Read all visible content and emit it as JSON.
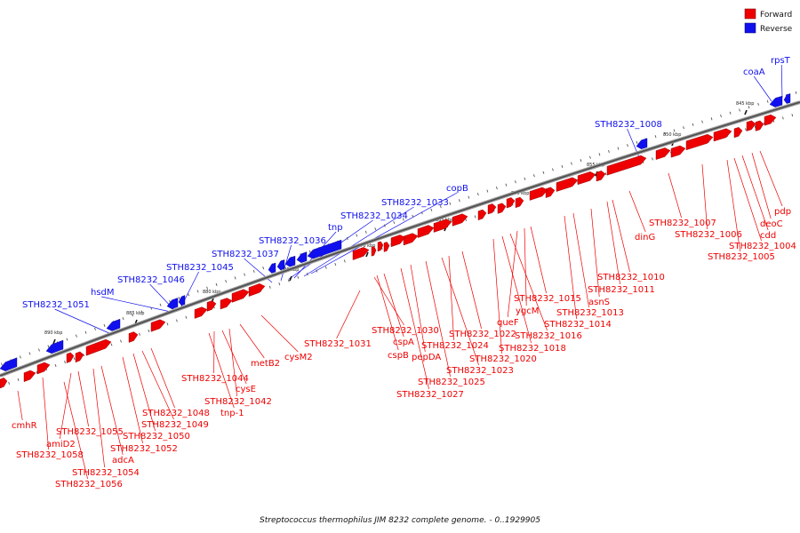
{
  "legend": {
    "forward_label": "Forward",
    "reverse_label": "Reverse",
    "forward_color": "#ee0000",
    "reverse_color": "#1010ee"
  },
  "caption": "Streptococcus thermophilus JIM 8232 complete genome. - 0..1929905",
  "tick_labels": [
    "845 kbp",
    "850 kbp",
    "855 kbp",
    "860 kbp",
    "865 kbp",
    "870 kbp",
    "875 kbp",
    "880 kbp",
    "885 kbp",
    "890 kbp"
  ],
  "top_labels": [
    "rpsT",
    "coaA",
    "STH8232_1008",
    "copB",
    "STH8232_1033",
    "tnp",
    "STH8232_1034",
    "STH8232_1036",
    "STH8232_1037",
    "STH8232_1045",
    "STH8232_1046",
    "hsdM",
    "STH8232_1051"
  ],
  "bottom_labels": [
    "pdp",
    "deoC",
    "cdd",
    "STH8232_1004",
    "STH8232_1005",
    "STH8232_1007",
    "STH8232_1006",
    "dinG",
    "STH8232_1010",
    "STH8232_1011",
    "asnS",
    "STH8232_1013",
    "STH8232_1014",
    "STH8232_1015",
    "ygcM",
    "queF",
    "STH8232_1016",
    "STH8232_1018",
    "STH8232_1020",
    "STH8232_1022",
    "STH8232_1024",
    "STH8232_1023",
    "STH8232_1025",
    "pepDA",
    "STH8232_1027",
    "cspA",
    "cspB",
    "STH8232_1030",
    "STH8232_1031",
    "cysM2",
    "metB2",
    "STH8232_1044",
    "cysE",
    "STH8232_1042",
    "tnp-1",
    "STH8232_1048",
    "STH8232_1049",
    "STH8232_1050",
    "STH8232_1052",
    "adcA",
    "STH8232_1054",
    "STH8232_1055",
    "amiD2",
    "STH8232_1058",
    "STH8232_1056",
    "cmhR"
  ]
}
